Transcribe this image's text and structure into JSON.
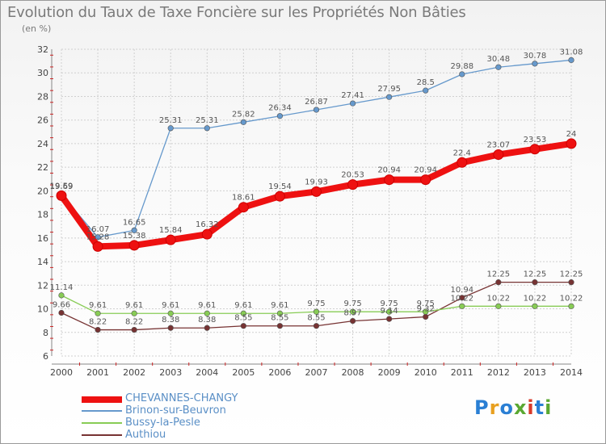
{
  "header": {
    "title": "Evolution du Taux de Taxe Foncière sur les Propriétés Non Bâties",
    "unit": "(en %)"
  },
  "logo": {
    "letters": [
      "P",
      "r",
      "o",
      "x",
      "i",
      "t",
      "i"
    ],
    "colors": [
      "#2a7fd4",
      "#e8a020",
      "#2a7fd4",
      "#5aa832",
      "#d83a2a",
      "#2a7fd4",
      "#5aa832"
    ]
  },
  "chart_data": {
    "type": "line",
    "title": "Evolution du Taux de Taxe Foncière sur les Propriétés Non Bâties",
    "ylabel": "(en %)",
    "ylim": [
      6,
      32
    ],
    "yticks": [
      "6",
      "8",
      "10",
      "12",
      "14",
      "16",
      "18",
      "20",
      "22",
      "24",
      "26",
      "28",
      "30",
      "32"
    ],
    "categories": [
      "2000",
      "2001",
      "2002",
      "2003",
      "2004",
      "2005",
      "2006",
      "2007",
      "2008",
      "2009",
      "2010",
      "2011",
      "2012",
      "2013",
      "2014"
    ],
    "series": [
      {
        "name": "CHEVANNES-CHANGY",
        "color": "#ee1111",
        "values": [
          19.59,
          15.28,
          15.38,
          15.84,
          16.32,
          18.61,
          19.54,
          19.93,
          20.53,
          20.94,
          20.94,
          22.4,
          23.07,
          23.53,
          24
        ],
        "labels": [
          "19.59",
          "15.28",
          "15.38",
          "15.84",
          "16.32",
          "18.61",
          "19.54",
          "19.93",
          "20.53",
          "20.94",
          "20.94",
          "22.4",
          "23.07",
          "23.53",
          "24"
        ]
      },
      {
        "name": "Brinon-sur-Beuvron",
        "color": "#6699cc",
        "values": [
          19.69,
          16.07,
          16.65,
          25.31,
          25.31,
          25.82,
          26.34,
          26.87,
          27.41,
          27.95,
          28.5,
          29.88,
          30.48,
          30.78,
          31.08
        ],
        "labels": [
          "19.69",
          "16.07",
          "16.65",
          "25.31",
          "25.31",
          "25.82",
          "26.34",
          "26.87",
          "27.41",
          "27.95",
          "28.5",
          "29.88",
          "30.48",
          "30.78",
          "31.08"
        ]
      },
      {
        "name": "Bussy-la-Pesle",
        "color": "#88cc55",
        "values": [
          11.14,
          9.61,
          9.61,
          9.61,
          9.61,
          9.61,
          9.61,
          9.75,
          9.75,
          9.75,
          9.75,
          10.22,
          10.22,
          10.22,
          10.22
        ],
        "labels": [
          "11.14",
          "9.61",
          "9.61",
          "9.61",
          "9.61",
          "9.61",
          "9.61",
          "9.75",
          "9.75",
          "9.75",
          "9.75",
          "10.22",
          "10.22",
          "10.22",
          "10.22"
        ]
      },
      {
        "name": "Authiou",
        "color": "#773333",
        "values": [
          9.66,
          8.22,
          8.22,
          8.38,
          8.38,
          8.55,
          8.55,
          8.55,
          8.97,
          9.14,
          9.32,
          10.94,
          12.25,
          12.25,
          12.25
        ],
        "labels": [
          "9.66",
          "8.22",
          "8.22",
          "8.38",
          "8.38",
          "8.55",
          "8.55",
          "8.55",
          "8.97",
          "9.14",
          "9.32",
          "10.94",
          "12.25",
          "12.25",
          "12.25"
        ]
      }
    ]
  }
}
